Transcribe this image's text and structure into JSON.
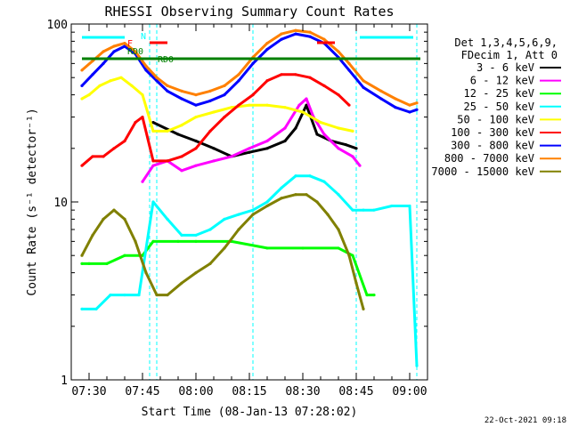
{
  "chart_data": {
    "type": "line",
    "title": "RHESSI Observing Summary Count Rates",
    "xlabel": "Start Time (08-Jan-13 07:28:02)",
    "ylabel": "Count Rate (s⁻¹ detector⁻¹)",
    "x_scale": "time",
    "y_scale": "log",
    "xlim": [
      "07:25",
      "09:05"
    ],
    "ylim": [
      1,
      100
    ],
    "x_ticks": [
      "07:30",
      "07:45",
      "08:00",
      "08:15",
      "08:30",
      "08:45",
      "09:00"
    ],
    "y_ticks": [
      "1",
      "10",
      "100"
    ],
    "grid": false,
    "legend_position": "right",
    "legend_header": [
      "Det 1,3,4,5,6,9,",
      "FDecim 1, Att 0"
    ],
    "footer_stamp": "22-Oct-2021 09:18",
    "annotations": [
      {
        "text": "N",
        "color": "#00ffff"
      },
      {
        "text": "F",
        "color": "#ff0000"
      },
      {
        "text": "RD0",
        "color": "#008000"
      },
      {
        "text": "RD0",
        "color": "#008000"
      }
    ],
    "status_bars": [
      {
        "flag": "N",
        "color": "#00ffff",
        "segments": [
          [
            "07:28",
            "07:40"
          ],
          [
            "08:46",
            "09:01"
          ]
        ]
      },
      {
        "flag": "F",
        "color": "#ff0000",
        "segments": [
          [
            "07:47",
            "07:52"
          ],
          [
            "08:34",
            "08:39"
          ]
        ]
      },
      {
        "flag": "RD0",
        "color": "#008000",
        "segments": [
          [
            "07:28",
            "09:03"
          ]
        ]
      }
    ],
    "vlines_cyan": [
      "07:47",
      "07:49",
      "08:16",
      "08:45",
      "09:02"
    ],
    "series": [
      {
        "name": "3 - 6 keV",
        "color": "#000000",
        "x": [
          "07:48",
          "07:55",
          "08:00",
          "08:05",
          "08:10",
          "08:15",
          "08:20",
          "08:25",
          "08:28",
          "08:31",
          "08:34",
          "08:38",
          "08:42",
          "08:45"
        ],
        "y": [
          28,
          24,
          22,
          20,
          18,
          19,
          20,
          22,
          26,
          35,
          24,
          22,
          21,
          20
        ]
      },
      {
        "name": "6 - 12 keV",
        "color": "#ff00ff",
        "x": [
          "07:45",
          "07:48",
          "07:52",
          "07:56",
          "08:00",
          "08:05",
          "08:10",
          "08:15",
          "08:20",
          "08:25",
          "08:29",
          "08:31",
          "08:33",
          "08:36",
          "08:40",
          "08:44",
          "08:46"
        ],
        "y": [
          13,
          16,
          17,
          15,
          16,
          17,
          18,
          20,
          22,
          26,
          35,
          38,
          30,
          24,
          20,
          18,
          16
        ]
      },
      {
        "name": "12 - 25 keV",
        "color": "#00ff00",
        "x": [
          "07:28",
          "07:30",
          "07:35",
          "07:40",
          "07:45",
          "07:48",
          "07:55",
          "08:00",
          "08:10",
          "08:20",
          "08:30",
          "08:40",
          "08:44",
          "08:48",
          "08:50"
        ],
        "y": [
          4.5,
          4.5,
          4.5,
          5,
          5,
          6,
          6,
          6,
          6,
          5.5,
          5.5,
          5.5,
          5,
          3,
          3
        ]
      },
      {
        "name": "25 - 50 keV",
        "color": "#00ffff",
        "x": [
          "07:28",
          "07:32",
          "07:36",
          "07:40",
          "07:44",
          "07:48",
          "07:52",
          "07:56",
          "08:00",
          "08:04",
          "08:08",
          "08:12",
          "08:16",
          "08:20",
          "08:24",
          "08:28",
          "08:32",
          "08:36",
          "08:40",
          "08:44",
          "08:47",
          "08:50",
          "08:55",
          "09:00",
          "09:02"
        ],
        "y": [
          2.5,
          2.5,
          3,
          3,
          3,
          10,
          8,
          6.5,
          6.5,
          7,
          8,
          8.5,
          9,
          10,
          12,
          14,
          14,
          13,
          11,
          9,
          9,
          9,
          9.5,
          9.5,
          1.2
        ]
      },
      {
        "name": "50 - 100 keV",
        "color": "#ffff00",
        "x": [
          "07:28",
          "07:30",
          "07:33",
          "07:36",
          "07:39",
          "07:42",
          "07:45",
          "07:48",
          "07:52",
          "07:56",
          "08:00",
          "08:05",
          "08:10",
          "08:15",
          "08:20",
          "08:25",
          "08:30",
          "08:35",
          "08:40",
          "08:44"
        ],
        "y": [
          38,
          40,
          45,
          48,
          50,
          45,
          40,
          25,
          25,
          27,
          30,
          32,
          34,
          35,
          35,
          34,
          32,
          28,
          26,
          25
        ]
      },
      {
        "name": "100 - 300 keV",
        "color": "#ff0000",
        "x": [
          "07:28",
          "07:31",
          "07:34",
          "07:37",
          "07:40",
          "07:43",
          "07:45",
          "07:48",
          "07:52",
          "07:56",
          "08:00",
          "08:04",
          "08:08",
          "08:12",
          "08:16",
          "08:20",
          "08:24",
          "08:28",
          "08:32",
          "08:36",
          "08:40",
          "08:43"
        ],
        "y": [
          16,
          18,
          18,
          20,
          22,
          28,
          30,
          17,
          17,
          18,
          20,
          25,
          30,
          35,
          40,
          48,
          52,
          52,
          50,
          45,
          40,
          35
        ]
      },
      {
        "name": "300 - 800 keV",
        "color": "#0000ff",
        "x": [
          "07:28",
          "07:31",
          "07:34",
          "07:37",
          "07:40",
          "07:43",
          "07:46",
          "07:49",
          "07:52",
          "07:56",
          "08:00",
          "08:04",
          "08:08",
          "08:12",
          "08:16",
          "08:20",
          "08:24",
          "08:28",
          "08:32",
          "08:36",
          "08:40",
          "08:43",
          "08:47",
          "08:52",
          "08:56",
          "09:00",
          "09:02"
        ],
        "y": [
          45,
          52,
          60,
          70,
          75,
          68,
          55,
          48,
          42,
          38,
          35,
          37,
          40,
          48,
          60,
          72,
          82,
          88,
          85,
          78,
          65,
          55,
          44,
          38,
          34,
          32,
          33
        ]
      },
      {
        "name": "800 - 7000 keV",
        "color": "#ff8000",
        "x": [
          "07:28",
          "07:31",
          "07:34",
          "07:37",
          "07:40",
          "07:43",
          "07:46",
          "07:49",
          "07:52",
          "07:56",
          "08:00",
          "08:04",
          "08:08",
          "08:12",
          "08:16",
          "08:20",
          "08:24",
          "08:28",
          "08:32",
          "08:36",
          "08:40",
          "08:43",
          "08:47",
          "08:52",
          "08:56",
          "09:00",
          "09:02"
        ],
        "y": [
          55,
          62,
          70,
          75,
          78,
          70,
          58,
          50,
          45,
          42,
          40,
          42,
          45,
          52,
          65,
          78,
          88,
          92,
          90,
          82,
          70,
          60,
          48,
          42,
          38,
          35,
          36
        ]
      },
      {
        "name": "7000 - 15000 keV",
        "color": "#808000",
        "x": [
          "07:28",
          "07:31",
          "07:34",
          "07:37",
          "07:40",
          "07:43",
          "07:46",
          "07:49",
          "07:52",
          "07:56",
          "08:00",
          "08:04",
          "08:08",
          "08:12",
          "08:16",
          "08:20",
          "08:24",
          "08:28",
          "08:31",
          "08:34",
          "08:37",
          "08:40",
          "08:43",
          "08:45",
          "08:47"
        ],
        "y": [
          5,
          6.5,
          8,
          9,
          8,
          6,
          4,
          3,
          3,
          3.5,
          4,
          4.5,
          5.5,
          7,
          8.5,
          9.5,
          10.5,
          11,
          11,
          10,
          8.5,
          7,
          5,
          3.5,
          2.5
        ]
      }
    ]
  }
}
